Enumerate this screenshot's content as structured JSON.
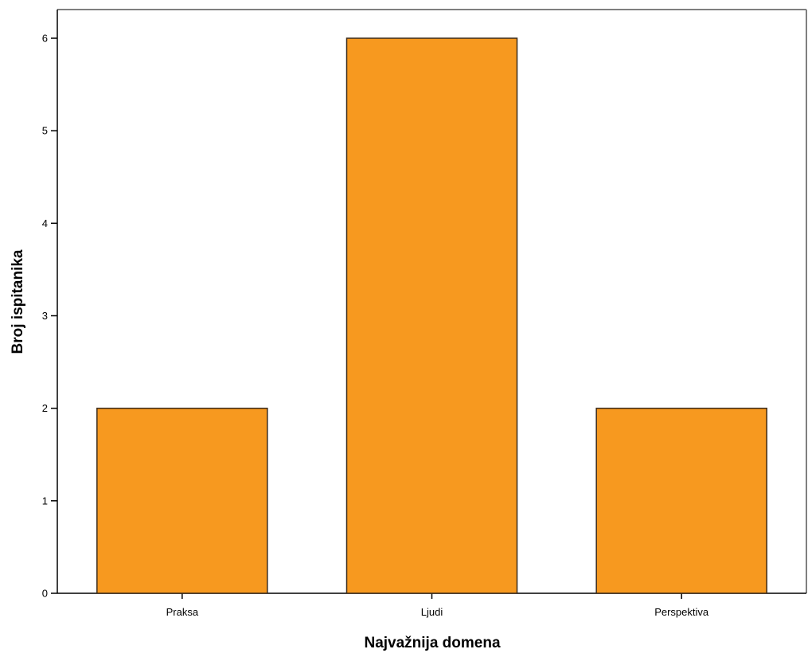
{
  "chart_data": {
    "type": "bar",
    "categories": [
      "Praksa",
      "Ljudi",
      "Perspektiva"
    ],
    "values": [
      2,
      6,
      2
    ],
    "title": "",
    "xlabel": "Najvažnija domena",
    "ylabel": "Broj ispitanika",
    "ylim": [
      0,
      6.3
    ],
    "yticks": [
      0,
      1,
      2,
      3,
      4,
      5,
      6
    ],
    "grid": false,
    "legend": "none",
    "bar_color": "#f7991f",
    "bar_edge_color": "#3a2a1a"
  }
}
